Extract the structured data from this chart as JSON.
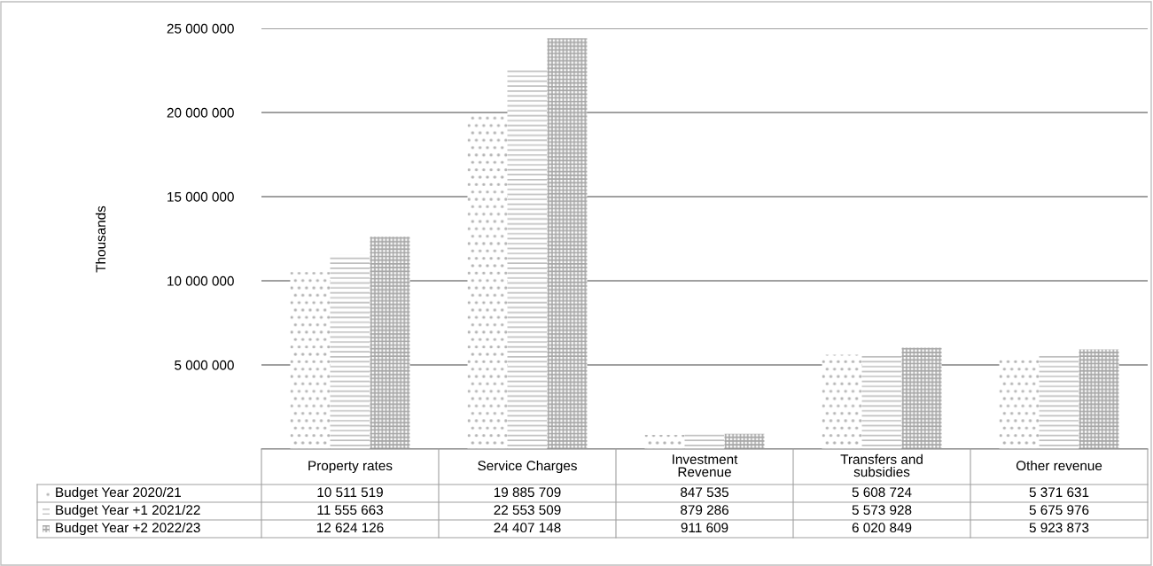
{
  "chart_data": {
    "type": "bar",
    "ylabel": "Thousands",
    "categories": [
      "Property rates",
      "Service Charges",
      "Investment\nRevenue",
      "Transfers and\nsubsidies",
      "Other revenue"
    ],
    "series": [
      {
        "name": "Budget Year 2020/21",
        "color": "#b3b3b3",
        "values": [
          10511519,
          19885709,
          847535,
          5608724,
          5371631
        ]
      },
      {
        "name": "Budget Year +1 2021/22",
        "color": "#bfbfbf",
        "values": [
          11555663,
          22553509,
          879286,
          5573928,
          5675976
        ]
      },
      {
        "name": "Budget Year +2 2022/23",
        "color": "#a6a6a6",
        "values": [
          12624126,
          24407148,
          911609,
          6020849,
          5923873
        ]
      }
    ],
    "ylim": [
      0,
      25000000
    ],
    "yticks": [
      {
        "value": 0,
        "label": null
      },
      {
        "value": 5000000,
        "label": "5 000 000"
      },
      {
        "value": 10000000,
        "label": "10 000 000"
      },
      {
        "value": 15000000,
        "label": "15 000 000"
      },
      {
        "value": 20000000,
        "label": "20 000 000"
      },
      {
        "value": 25000000,
        "label": "25 000 000"
      }
    ],
    "grid": "y",
    "legend": "bottom",
    "data_labels": true
  }
}
